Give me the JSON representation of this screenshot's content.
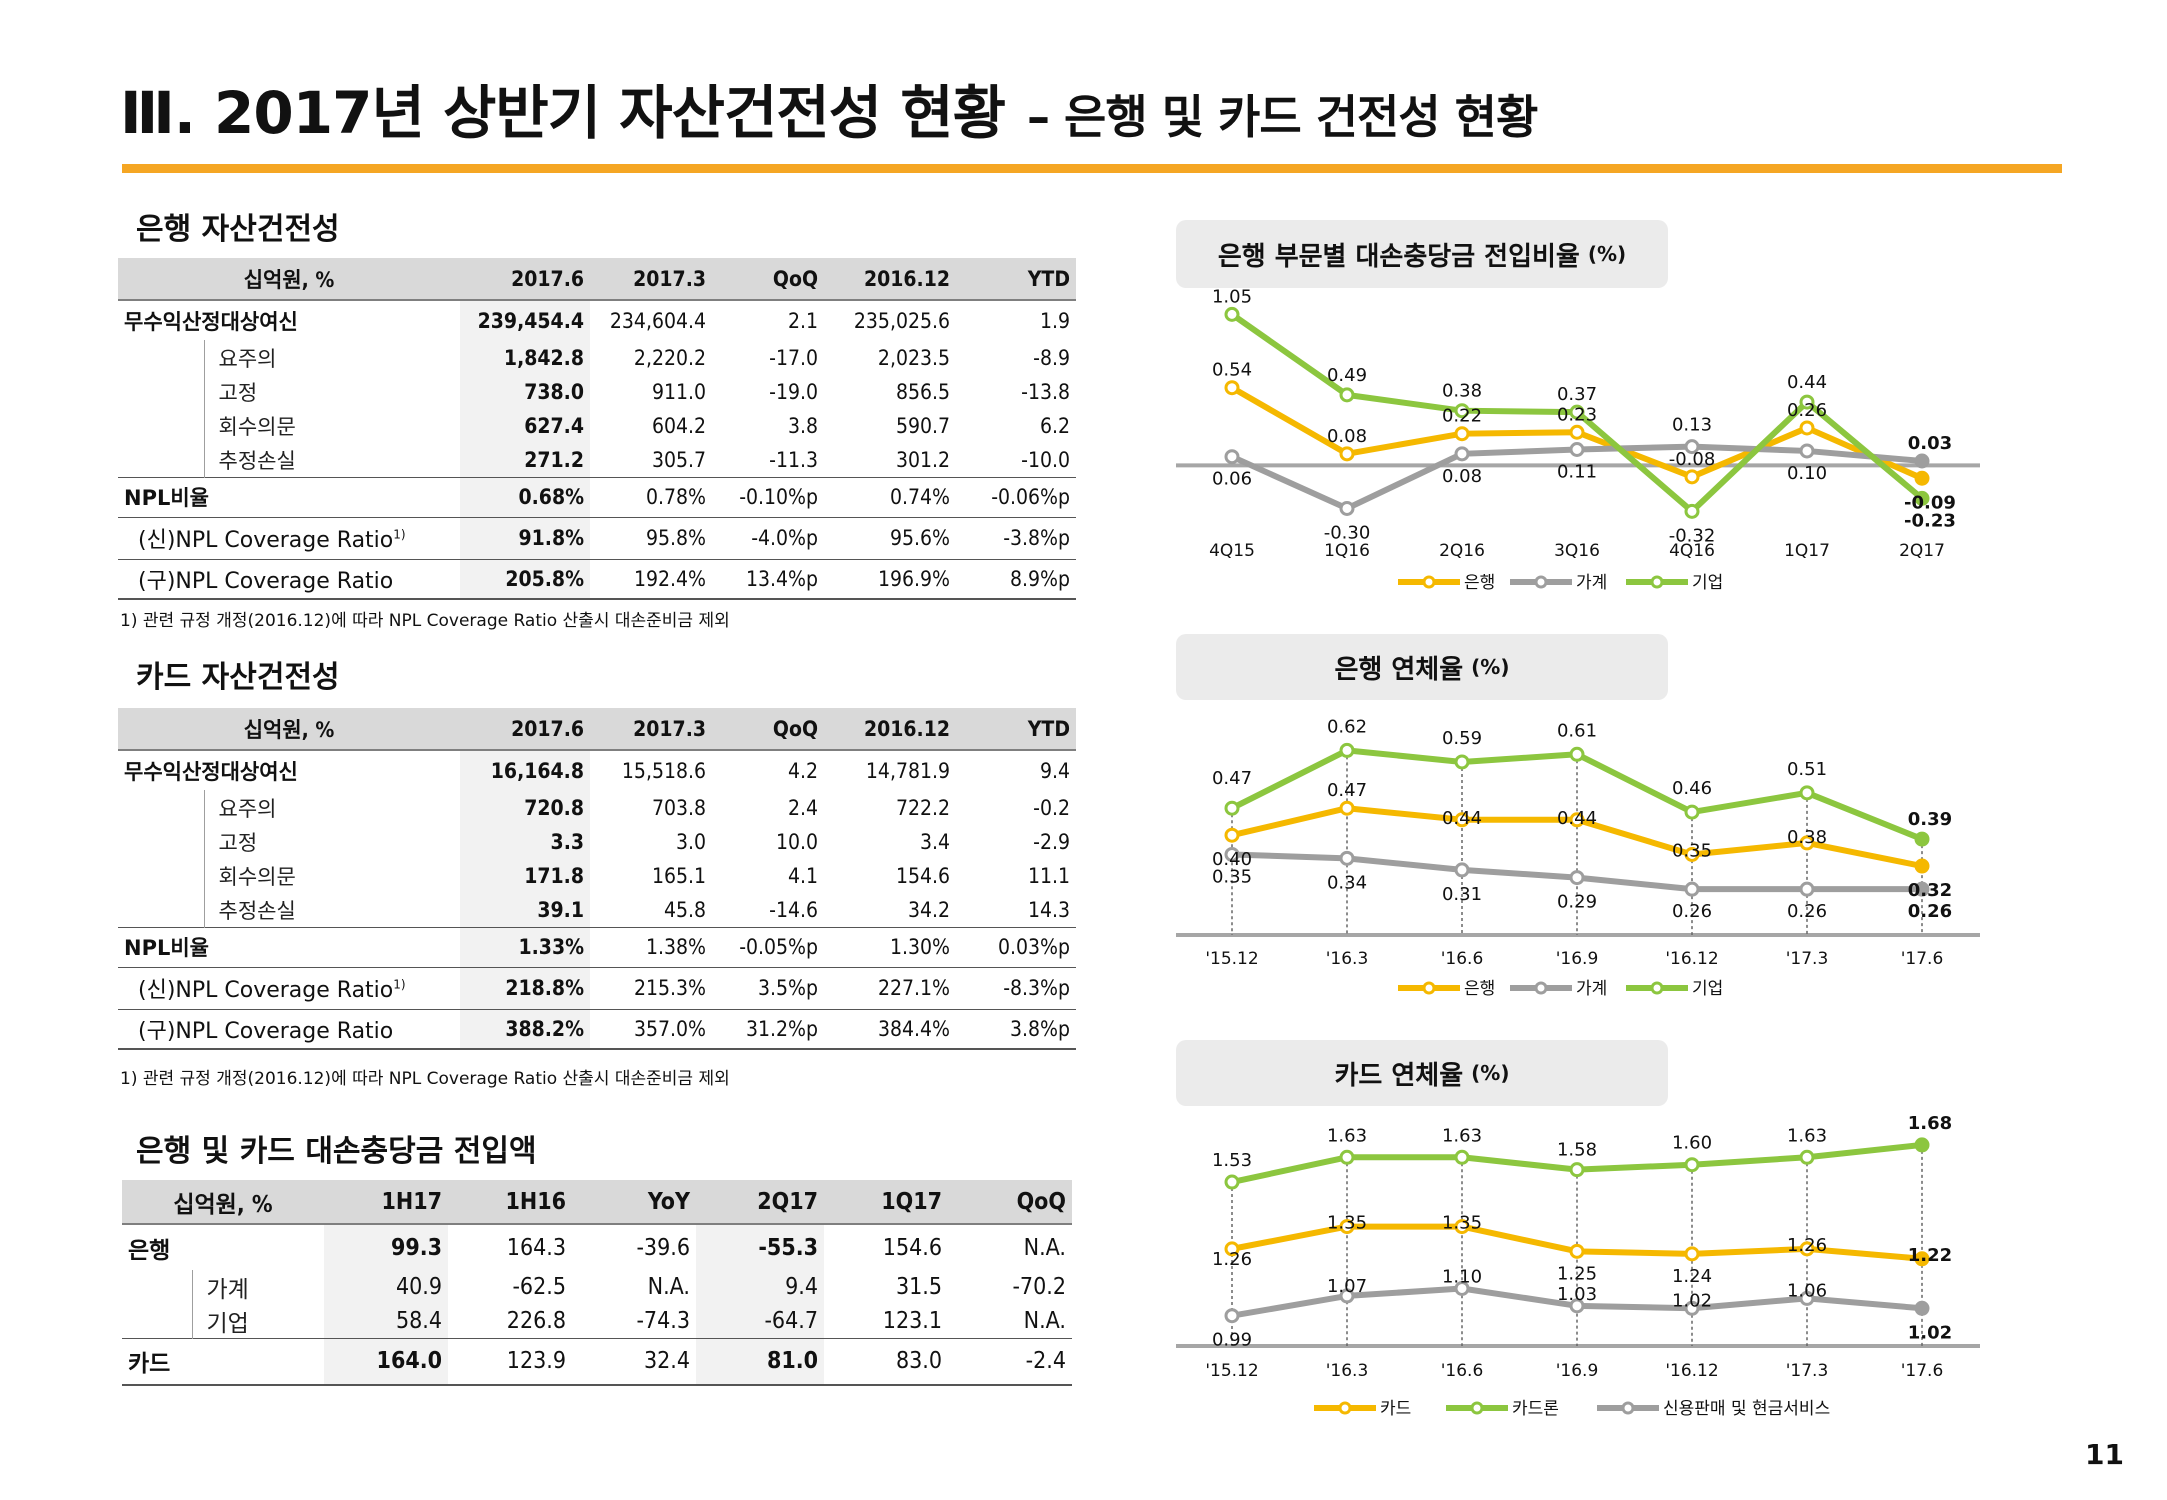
{
  "page": {
    "title_main": "Ⅲ. 2017년 상반기 자산건전성 현황",
    "title_sub": "– 은행 및 카드 건전성 현황",
    "page_number": "11",
    "accent_color": "#F5A623"
  },
  "bank_table": {
    "section_title": "은행 자산건전성",
    "header": [
      "십억원, %",
      "2017.6",
      "2017.3",
      "QoQ",
      "2016.12",
      "YTD"
    ],
    "rows": [
      {
        "label": "무수익산정대상여신",
        "values": [
          "239,454.4",
          "234,604.4",
          "2.1",
          "235,025.6",
          "1.9"
        ]
      },
      {
        "label": "요주의",
        "values": [
          "1,842.8",
          "2,220.2",
          "-17.0",
          "2,023.5",
          "-8.9"
        ]
      },
      {
        "label": "고정",
        "values": [
          "738.0",
          "911.0",
          "-19.0",
          "856.5",
          "-13.8"
        ]
      },
      {
        "label": "회수의문",
        "values": [
          "627.4",
          "604.2",
          "3.8",
          "590.7",
          "6.2"
        ]
      },
      {
        "label": "추정손실",
        "values": [
          "271.2",
          "305.7",
          "-11.3",
          "301.2",
          "-10.0"
        ]
      },
      {
        "label": "NPL비율",
        "values": [
          "0.68%",
          "0.78%",
          "-0.10%p",
          "0.74%",
          "-0.06%p"
        ]
      },
      {
        "label": "(신)NPL Coverage Ratio",
        "sup": "1)",
        "values": [
          "91.8%",
          "95.8%",
          "-4.0%p",
          "95.6%",
          "-3.8%p"
        ]
      },
      {
        "label": "(구)NPL Coverage Ratio",
        "values": [
          "205.8%",
          "192.4%",
          "13.4%p",
          "196.9%",
          "8.9%p"
        ]
      }
    ],
    "footnote": "1) 관련 규정 개정(2016.12)에 따라 NPL Coverage Ratio 산출시 대손준비금 제외"
  },
  "card_table": {
    "section_title": "카드 자산건전성",
    "header": [
      "십억원, %",
      "2017.6",
      "2017.3",
      "QoQ",
      "2016.12",
      "YTD"
    ],
    "rows": [
      {
        "label": "무수익산정대상여신",
        "values": [
          "16,164.8",
          "15,518.6",
          "4.2",
          "14,781.9",
          "9.4"
        ]
      },
      {
        "label": "요주의",
        "values": [
          "720.8",
          "703.8",
          "2.4",
          "722.2",
          "-0.2"
        ]
      },
      {
        "label": "고정",
        "values": [
          "3.3",
          "3.0",
          "10.0",
          "3.4",
          "-2.9"
        ]
      },
      {
        "label": "회수의문",
        "values": [
          "171.8",
          "165.1",
          "4.1",
          "154.6",
          "11.1"
        ]
      },
      {
        "label": "추정손실",
        "values": [
          "39.1",
          "45.8",
          "-14.6",
          "34.2",
          "14.3"
        ]
      },
      {
        "label": "NPL비율",
        "values": [
          "1.33%",
          "1.38%",
          "-0.05%p",
          "1.30%",
          "0.03%p"
        ]
      },
      {
        "label": "(신)NPL Coverage Ratio",
        "sup": "1)",
        "values": [
          "218.8%",
          "215.3%",
          "3.5%p",
          "227.1%",
          "-8.3%p"
        ]
      },
      {
        "label": "(구)NPL Coverage Ratio",
        "values": [
          "388.2%",
          "357.0%",
          "31.2%p",
          "384.4%",
          "3.8%p"
        ]
      }
    ],
    "footnote": "1) 관련 규정 개정(2016.12)에 따라 NPL Coverage Ratio 산출시 대손준비금 제외"
  },
  "provision_table": {
    "section_title": "은행 및 카드 대손충당금 전입액",
    "header": [
      "십억원, %",
      "1H17",
      "1H16",
      "YoY",
      "2Q17",
      "1Q17",
      "QoQ"
    ],
    "rows": [
      {
        "label": "은행",
        "values": [
          "99.3",
          "164.3",
          "-39.6",
          "-55.3",
          "154.6",
          "N.A."
        ]
      },
      {
        "label": "가계",
        "values": [
          "40.9",
          "-62.5",
          "N.A.",
          "9.4",
          "31.5",
          "-70.2"
        ]
      },
      {
        "label": "기업",
        "values": [
          "58.4",
          "226.8",
          "-74.3",
          "-64.7",
          "123.1",
          "N.A."
        ]
      },
      {
        "label": "카드",
        "values": [
          "164.0",
          "123.9",
          "32.4",
          "81.0",
          "83.0",
          "-2.4"
        ]
      }
    ]
  },
  "chart_data": [
    {
      "type": "line",
      "title": "은행 부문별 대손충당금 전입비율",
      "unit_label": "(%)",
      "categories": [
        "4Q15",
        "1Q16",
        "2Q16",
        "3Q16",
        "4Q16",
        "1Q17",
        "2Q17"
      ],
      "ylim": [
        -0.45,
        1.15
      ],
      "series": [
        {
          "name": "은행",
          "color": "#F5B800",
          "values": [
            0.54,
            0.08,
            0.22,
            0.23,
            -0.08,
            0.26,
            -0.09
          ]
        },
        {
          "name": "가계",
          "color": "#9E9E9E",
          "values": [
            0.06,
            -0.3,
            0.08,
            0.11,
            0.13,
            0.1,
            0.03
          ]
        },
        {
          "name": "기업",
          "color": "#8CC63F",
          "values": [
            1.05,
            0.49,
            0.38,
            0.37,
            -0.32,
            0.44,
            -0.23
          ]
        }
      ],
      "labels": [
        [
          "0.54",
          "0.08",
          "0.22",
          "0.23",
          "-0.08",
          "0.26",
          "-0.09"
        ],
        [
          "0.06",
          "-0.30",
          "0.08",
          "0.11",
          "0.13",
          "0.10",
          "0.03"
        ],
        [
          "1.05",
          "0.49",
          "0.38",
          "0.37",
          "-0.32",
          "0.44",
          "-0.23"
        ]
      ],
      "legend": "bottom",
      "grid": false
    },
    {
      "type": "line",
      "title": "은행 연체율",
      "unit_label": "(%)",
      "categories": [
        "'15.12",
        "'16.3",
        "'16.6",
        "'16.9",
        "'16.12",
        "'17.3",
        "'17.6"
      ],
      "ylim": [
        0.18,
        0.66
      ],
      "series": [
        {
          "name": "은행",
          "color": "#F5B800",
          "values": [
            0.4,
            0.47,
            0.44,
            0.44,
            0.35,
            0.38,
            0.32
          ]
        },
        {
          "name": "가계",
          "color": "#9E9E9E",
          "values": [
            0.35,
            0.34,
            0.31,
            0.29,
            0.26,
            0.26,
            0.26
          ]
        },
        {
          "name": "기업",
          "color": "#8CC63F",
          "values": [
            0.47,
            0.62,
            0.59,
            0.61,
            0.46,
            0.51,
            0.39
          ]
        }
      ],
      "labels": [
        [
          "0.40",
          "0.47",
          "0.44",
          "0.44",
          "0.35",
          "0.38",
          "0.32"
        ],
        [
          "0.35",
          "0.34",
          "0.31",
          "0.29",
          "0.26",
          "0.26",
          "0.26"
        ],
        [
          "0.47",
          "0.62",
          "0.59",
          "0.61",
          "0.46",
          "0.51",
          "0.39"
        ]
      ],
      "legend": "bottom",
      "grid": false
    },
    {
      "type": "line",
      "title": "카드 연체율",
      "unit_label": "(%)",
      "categories": [
        "'15.12",
        "'16.3",
        "'16.6",
        "'16.9",
        "'16.12",
        "'17.3",
        "'17.6"
      ],
      "ylim": [
        0.9,
        1.72
      ],
      "series": [
        {
          "name": "카드",
          "color": "#F5B800",
          "values": [
            1.26,
            1.35,
            1.35,
            1.25,
            1.24,
            1.26,
            1.22
          ]
        },
        {
          "name": "카드론",
          "color": "#8CC63F",
          "values": [
            1.53,
            1.63,
            1.63,
            1.58,
            1.6,
            1.63,
            1.68
          ]
        },
        {
          "name": "신용판매 및 현금서비스",
          "color": "#9E9E9E",
          "values": [
            0.99,
            1.07,
            1.1,
            1.03,
            1.02,
            1.06,
            1.02
          ]
        }
      ],
      "labels": [
        [
          "1.26",
          "1.35",
          "1.35",
          "1.25",
          "1.24",
          "1.26",
          "1.22"
        ],
        [
          "1.53",
          "1.63",
          "1.63",
          "1.58",
          "1.60",
          "1.63",
          "1.68"
        ],
        [
          "0.99",
          "1.07",
          "1.10",
          "1.03",
          "1.02",
          "1.06",
          "1.02"
        ]
      ],
      "legend": "bottom",
      "grid": false
    }
  ]
}
